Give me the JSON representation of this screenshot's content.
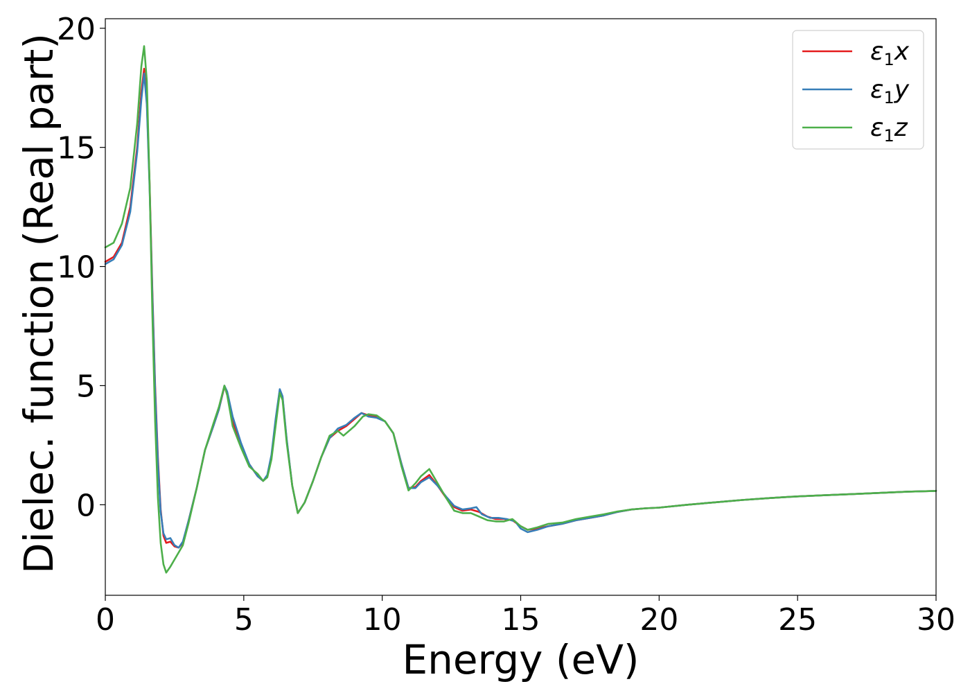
{
  "chart_data": {
    "type": "line",
    "title": "",
    "xlabel": "Energy (eV)",
    "ylabel": "Dielec. function (Real part)",
    "xlim": [
      0,
      30
    ],
    "ylim": [
      -3.8,
      20.4
    ],
    "xticks": [
      0,
      5,
      10,
      15,
      20,
      25,
      30
    ],
    "yticks": [
      0,
      5,
      10,
      15,
      20
    ],
    "grid": false,
    "legend_position": "top-right",
    "series": [
      {
        "name": "ε₁x",
        "legend_main": "ε",
        "legend_sub": "1",
        "legend_var": "x",
        "color": "#e41a1c",
        "points": [
          [
            0,
            10.2
          ],
          [
            0.3,
            10.4
          ],
          [
            0.6,
            11.0
          ],
          [
            0.9,
            12.5
          ],
          [
            1.15,
            15.0
          ],
          [
            1.3,
            17.3
          ],
          [
            1.4,
            18.3
          ],
          [
            1.5,
            17.0
          ],
          [
            1.6,
            13.5
          ],
          [
            1.7,
            9.0
          ],
          [
            1.8,
            5.0
          ],
          [
            1.9,
            2.0
          ],
          [
            2.0,
            -0.2
          ],
          [
            2.1,
            -1.3
          ],
          [
            2.2,
            -1.6
          ],
          [
            2.35,
            -1.55
          ],
          [
            2.5,
            -1.75
          ],
          [
            2.65,
            -1.8
          ],
          [
            2.8,
            -1.6
          ],
          [
            3.0,
            -0.7
          ],
          [
            3.3,
            0.7
          ],
          [
            3.6,
            2.3
          ],
          [
            3.9,
            3.3
          ],
          [
            4.1,
            4.0
          ],
          [
            4.3,
            4.95
          ],
          [
            4.4,
            4.7
          ],
          [
            4.6,
            3.5
          ],
          [
            4.9,
            2.5
          ],
          [
            5.2,
            1.7
          ],
          [
            5.5,
            1.2
          ],
          [
            5.7,
            1.0
          ],
          [
            5.85,
            1.2
          ],
          [
            6.0,
            2.0
          ],
          [
            6.15,
            3.5
          ],
          [
            6.3,
            4.8
          ],
          [
            6.4,
            4.5
          ],
          [
            6.55,
            2.7
          ],
          [
            6.75,
            0.8
          ],
          [
            6.95,
            -0.35
          ],
          [
            7.2,
            0.1
          ],
          [
            7.5,
            1.0
          ],
          [
            7.8,
            2.0
          ],
          [
            8.1,
            2.8
          ],
          [
            8.4,
            3.1
          ],
          [
            8.7,
            3.3
          ],
          [
            9.0,
            3.6
          ],
          [
            9.25,
            3.85
          ],
          [
            9.5,
            3.75
          ],
          [
            9.8,
            3.7
          ],
          [
            10.1,
            3.5
          ],
          [
            10.4,
            3.0
          ],
          [
            10.7,
            1.7
          ],
          [
            10.95,
            0.7
          ],
          [
            11.2,
            0.75
          ],
          [
            11.4,
            1.0
          ],
          [
            11.7,
            1.25
          ],
          [
            12.0,
            0.8
          ],
          [
            12.3,
            0.3
          ],
          [
            12.6,
            -0.1
          ],
          [
            12.9,
            -0.25
          ],
          [
            13.2,
            -0.2
          ],
          [
            13.5,
            -0.3
          ],
          [
            13.8,
            -0.5
          ],
          [
            14.1,
            -0.6
          ],
          [
            14.4,
            -0.6
          ],
          [
            14.7,
            -0.65
          ],
          [
            15.0,
            -0.9
          ],
          [
            15.25,
            -1.05
          ],
          [
            15.6,
            -1.0
          ],
          [
            16.0,
            -0.9
          ],
          [
            16.5,
            -0.8
          ],
          [
            17.0,
            -0.65
          ],
          [
            17.5,
            -0.55
          ],
          [
            18.0,
            -0.45
          ],
          [
            18.5,
            -0.3
          ],
          [
            19.0,
            -0.2
          ],
          [
            19.5,
            -0.15
          ],
          [
            20.0,
            -0.12
          ],
          [
            21.0,
            0.0
          ],
          [
            22.0,
            0.1
          ],
          [
            23.0,
            0.2
          ],
          [
            24.0,
            0.28
          ],
          [
            25.0,
            0.35
          ],
          [
            26.0,
            0.4
          ],
          [
            27.0,
            0.45
          ],
          [
            28.0,
            0.5
          ],
          [
            29.0,
            0.55
          ],
          [
            30.0,
            0.58
          ]
        ]
      },
      {
        "name": "ε₁y",
        "legend_main": "ε",
        "legend_sub": "1",
        "legend_var": "y",
        "color": "#377eb8",
        "points": [
          [
            0,
            10.1
          ],
          [
            0.3,
            10.3
          ],
          [
            0.6,
            10.9
          ],
          [
            0.9,
            12.3
          ],
          [
            1.15,
            14.8
          ],
          [
            1.3,
            17.0
          ],
          [
            1.4,
            18.1
          ],
          [
            1.5,
            16.8
          ],
          [
            1.6,
            13.3
          ],
          [
            1.7,
            8.8
          ],
          [
            1.8,
            4.8
          ],
          [
            1.9,
            1.8
          ],
          [
            2.0,
            -0.3
          ],
          [
            2.1,
            -1.2
          ],
          [
            2.2,
            -1.45
          ],
          [
            2.35,
            -1.4
          ],
          [
            2.5,
            -1.7
          ],
          [
            2.65,
            -1.8
          ],
          [
            2.8,
            -1.55
          ],
          [
            3.0,
            -0.7
          ],
          [
            3.3,
            0.7
          ],
          [
            3.6,
            2.3
          ],
          [
            3.9,
            3.3
          ],
          [
            4.1,
            4.0
          ],
          [
            4.3,
            5.0
          ],
          [
            4.4,
            4.75
          ],
          [
            4.6,
            3.7
          ],
          [
            4.9,
            2.6
          ],
          [
            5.2,
            1.7
          ],
          [
            5.5,
            1.2
          ],
          [
            5.7,
            1.0
          ],
          [
            5.85,
            1.25
          ],
          [
            6.0,
            2.1
          ],
          [
            6.15,
            3.6
          ],
          [
            6.3,
            4.85
          ],
          [
            6.4,
            4.55
          ],
          [
            6.55,
            2.75
          ],
          [
            6.75,
            0.8
          ],
          [
            6.95,
            -0.35
          ],
          [
            7.2,
            0.1
          ],
          [
            7.5,
            1.0
          ],
          [
            7.8,
            2.0
          ],
          [
            8.1,
            2.8
          ],
          [
            8.4,
            3.2
          ],
          [
            8.7,
            3.35
          ],
          [
            9.0,
            3.65
          ],
          [
            9.25,
            3.85
          ],
          [
            9.5,
            3.7
          ],
          [
            9.8,
            3.65
          ],
          [
            10.1,
            3.5
          ],
          [
            10.4,
            3.0
          ],
          [
            10.7,
            1.7
          ],
          [
            10.95,
            0.7
          ],
          [
            11.2,
            0.7
          ],
          [
            11.4,
            0.95
          ],
          [
            11.7,
            1.15
          ],
          [
            12.0,
            0.8
          ],
          [
            12.3,
            0.35
          ],
          [
            12.6,
            -0.05
          ],
          [
            12.9,
            -0.2
          ],
          [
            13.2,
            -0.15
          ],
          [
            13.4,
            -0.1
          ],
          [
            13.6,
            -0.4
          ],
          [
            13.9,
            -0.55
          ],
          [
            14.2,
            -0.55
          ],
          [
            14.5,
            -0.6
          ],
          [
            14.8,
            -0.7
          ],
          [
            15.0,
            -1.0
          ],
          [
            15.25,
            -1.15
          ],
          [
            15.6,
            -1.05
          ],
          [
            16.0,
            -0.9
          ],
          [
            16.5,
            -0.8
          ],
          [
            17.0,
            -0.65
          ],
          [
            17.5,
            -0.55
          ],
          [
            18.0,
            -0.45
          ],
          [
            18.5,
            -0.3
          ],
          [
            19.0,
            -0.2
          ],
          [
            19.5,
            -0.15
          ],
          [
            20.0,
            -0.12
          ],
          [
            21.0,
            0.0
          ],
          [
            22.0,
            0.1
          ],
          [
            23.0,
            0.2
          ],
          [
            24.0,
            0.28
          ],
          [
            25.0,
            0.35
          ],
          [
            26.0,
            0.4
          ],
          [
            27.0,
            0.45
          ],
          [
            28.0,
            0.5
          ],
          [
            29.0,
            0.55
          ],
          [
            30.0,
            0.58
          ]
        ]
      },
      {
        "name": "ε₁z",
        "legend_main": "ε",
        "legend_sub": "1",
        "legend_var": "z",
        "color": "#4daf4a",
        "points": [
          [
            0,
            10.8
          ],
          [
            0.3,
            11.0
          ],
          [
            0.6,
            11.8
          ],
          [
            0.9,
            13.3
          ],
          [
            1.15,
            16.0
          ],
          [
            1.3,
            18.4
          ],
          [
            1.4,
            19.25
          ],
          [
            1.5,
            17.8
          ],
          [
            1.6,
            13.5
          ],
          [
            1.7,
            8.0
          ],
          [
            1.8,
            3.5
          ],
          [
            1.9,
            0.3
          ],
          [
            2.0,
            -1.6
          ],
          [
            2.1,
            -2.5
          ],
          [
            2.2,
            -2.85
          ],
          [
            2.35,
            -2.6
          ],
          [
            2.5,
            -2.3
          ],
          [
            2.65,
            -2.0
          ],
          [
            2.8,
            -1.7
          ],
          [
            3.0,
            -0.8
          ],
          [
            3.3,
            0.7
          ],
          [
            3.6,
            2.3
          ],
          [
            3.9,
            3.4
          ],
          [
            4.1,
            4.1
          ],
          [
            4.3,
            5.0
          ],
          [
            4.4,
            4.6
          ],
          [
            4.6,
            3.3
          ],
          [
            4.9,
            2.4
          ],
          [
            5.2,
            1.6
          ],
          [
            5.5,
            1.3
          ],
          [
            5.7,
            1.0
          ],
          [
            5.85,
            1.15
          ],
          [
            6.0,
            1.9
          ],
          [
            6.15,
            3.3
          ],
          [
            6.3,
            4.7
          ],
          [
            6.4,
            4.4
          ],
          [
            6.55,
            2.6
          ],
          [
            6.75,
            0.8
          ],
          [
            6.95,
            -0.35
          ],
          [
            7.2,
            0.1
          ],
          [
            7.5,
            1.0
          ],
          [
            7.8,
            2.0
          ],
          [
            8.1,
            2.9
          ],
          [
            8.4,
            3.1
          ],
          [
            8.6,
            2.9
          ],
          [
            8.8,
            3.1
          ],
          [
            9.0,
            3.3
          ],
          [
            9.3,
            3.7
          ],
          [
            9.5,
            3.8
          ],
          [
            9.8,
            3.75
          ],
          [
            10.1,
            3.5
          ],
          [
            10.4,
            3.0
          ],
          [
            10.7,
            1.6
          ],
          [
            10.95,
            0.6
          ],
          [
            11.2,
            0.9
          ],
          [
            11.4,
            1.2
          ],
          [
            11.7,
            1.5
          ],
          [
            12.0,
            0.9
          ],
          [
            12.3,
            0.3
          ],
          [
            12.6,
            -0.25
          ],
          [
            12.9,
            -0.35
          ],
          [
            13.2,
            -0.35
          ],
          [
            13.5,
            -0.5
          ],
          [
            13.8,
            -0.65
          ],
          [
            14.1,
            -0.7
          ],
          [
            14.4,
            -0.7
          ],
          [
            14.7,
            -0.6
          ],
          [
            15.0,
            -0.9
          ],
          [
            15.25,
            -1.05
          ],
          [
            15.6,
            -0.95
          ],
          [
            16.0,
            -0.8
          ],
          [
            16.5,
            -0.75
          ],
          [
            17.0,
            -0.6
          ],
          [
            17.5,
            -0.5
          ],
          [
            18.0,
            -0.4
          ],
          [
            18.5,
            -0.28
          ],
          [
            19.0,
            -0.2
          ],
          [
            19.5,
            -0.15
          ],
          [
            20.0,
            -0.12
          ],
          [
            21.0,
            0.0
          ],
          [
            22.0,
            0.1
          ],
          [
            23.0,
            0.2
          ],
          [
            24.0,
            0.28
          ],
          [
            25.0,
            0.35
          ],
          [
            26.0,
            0.4
          ],
          [
            27.0,
            0.45
          ],
          [
            28.0,
            0.5
          ],
          [
            29.0,
            0.55
          ],
          [
            30.0,
            0.58
          ]
        ]
      }
    ]
  }
}
